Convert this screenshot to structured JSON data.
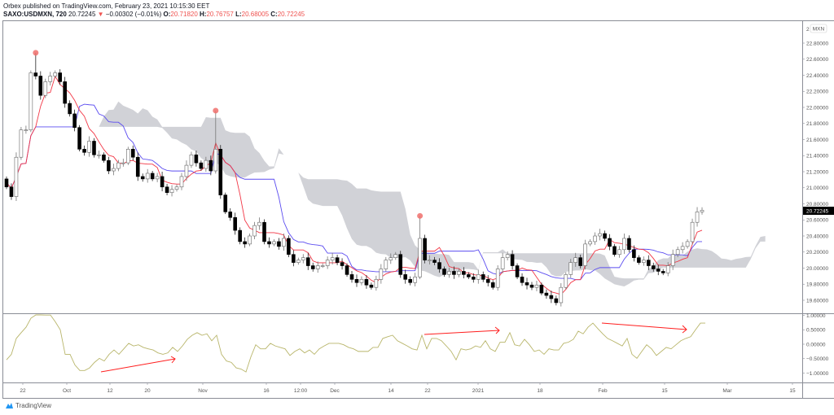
{
  "header": {
    "published": "Orbex published on TradingView.com, February 23, 2021 10:15:30 EET",
    "symbol": "SAXO:USDMXN, 720",
    "last": "20.72245",
    "change": "−0.00302 (−0.01%)",
    "o_label": "O:",
    "o": "20.71820",
    "h_label": "H:",
    "h": "20.76757",
    "l_label": "L:",
    "l": "20.68005",
    "c_label": "C:",
    "c": "20.72245",
    "direction_icon": "triangle-down-icon"
  },
  "price_axis": {
    "currency_badge": "MXN",
    "top_partial": "2",
    "labels": [
      "22.80000",
      "22.60000",
      "22.40000",
      "22.20000",
      "22.00000",
      "21.80000",
      "21.60000",
      "21.40000",
      "21.20000",
      "21.00000",
      "20.80000",
      "20.60000",
      "20.40000",
      "20.20000",
      "20.00000",
      "19.80000",
      "19.60000"
    ],
    "last_price_label": "20.72245"
  },
  "oscillator_axis": {
    "labels": [
      "1.00000",
      "0.50000",
      "0.00000",
      "−0.50000",
      "−1.00000"
    ]
  },
  "time_axis": {
    "labels": [
      "22",
      "Oct",
      "12",
      "20",
      "Nov",
      "16",
      "12:00",
      "Dec",
      "14",
      "22",
      "2021",
      "18",
      "Feb",
      "15",
      "Mar",
      "15"
    ]
  },
  "footer": {
    "brand": "TradingView",
    "logo_icon": "tradingview-logo-icon"
  },
  "colors": {
    "tenkan": "#f23645",
    "kijun": "#5b4cf0",
    "cloud": "#c9cad0",
    "oscillator": "#b8b56a",
    "markers": "#f0706c",
    "bull": "#ffffff",
    "bear": "#000000",
    "arrows": "#ff1e1e"
  },
  "chart_data": [
    {
      "type": "candlestick",
      "indicators": [
        "Ichimoku Cloud"
      ],
      "ylim": [
        19.5,
        23.0
      ],
      "grid": false,
      "closes": [
        21.01,
        20.89,
        21.38,
        21.72,
        21.72,
        22.43,
        22.39,
        22.15,
        22.32,
        22.39,
        22.43,
        22.32,
        22.05,
        21.92,
        21.75,
        21.48,
        21.44,
        21.58,
        21.41,
        21.41,
        21.34,
        21.21,
        21.24,
        21.31,
        21.31,
        21.48,
        21.38,
        21.14,
        21.11,
        21.18,
        21.11,
        21.14,
        21.01,
        20.94,
        20.98,
        21.01,
        21.14,
        21.28,
        21.41,
        21.31,
        21.24,
        21.34,
        21.21,
        21.48,
        20.91,
        20.7,
        20.63,
        20.47,
        20.33,
        20.3,
        20.4,
        20.53,
        20.57,
        20.33,
        20.3,
        20.33,
        20.27,
        20.37,
        20.17,
        20.07,
        20.1,
        20.13,
        20.03,
        19.99,
        20.03,
        20.03,
        20.1,
        20.13,
        20.07,
        20.03,
        19.92,
        19.86,
        19.82,
        19.86,
        19.79,
        19.76,
        19.86,
        19.99,
        20.1,
        20.13,
        20.17,
        19.92,
        19.86,
        19.82,
        19.89,
        20.37,
        20.1,
        20.1,
        20.07,
        19.99,
        19.92,
        19.96,
        19.92,
        19.96,
        19.92,
        19.89,
        19.86,
        19.92,
        19.86,
        19.82,
        19.76,
        19.99,
        20.13,
        20.17,
        20.03,
        19.89,
        19.82,
        19.79,
        19.76,
        19.79,
        19.69,
        19.66,
        19.62,
        19.57,
        19.76,
        19.92,
        20.07,
        20.13,
        20.03,
        20.3,
        20.33,
        20.4,
        20.43,
        20.37,
        20.27,
        20.17,
        20.23,
        20.37,
        20.23,
        20.13,
        20.07,
        20.1,
        20.03,
        19.99,
        19.96,
        19.94,
        20.03,
        20.17,
        20.23,
        20.27,
        20.33,
        20.57,
        20.7,
        20.72
      ],
      "signal_markers": [
        {
          "bar": 6,
          "price": 22.68
        },
        {
          "bar": 43,
          "price": 21.96
        },
        {
          "bar": 85,
          "price": 20.65
        }
      ]
    },
    {
      "type": "line",
      "ylim": [
        -1.2,
        1.2
      ],
      "values": [
        -0.54,
        -0.35,
        0.2,
        0.4,
        0.59,
        0.9,
        1.15,
        1.15,
        1.01,
        1.01,
        0.77,
        0.5,
        -0.35,
        -0.35,
        -0.72,
        -0.91,
        -0.91,
        -0.82,
        -0.63,
        -0.49,
        -0.58,
        -0.35,
        -0.2,
        -0.35,
        -0.16,
        0.03,
        -0.06,
        -0.02,
        -0.11,
        -0.16,
        -0.2,
        -0.3,
        -0.35,
        -0.3,
        -0.11,
        -0.25,
        -0.06,
        0.17,
        0.31,
        0.4,
        0.31,
        0.36,
        0.12,
        0.31,
        -0.35,
        -0.58,
        -0.63,
        -0.82,
        -0.86,
        -0.96,
        -0.44,
        -0.02,
        -0.16,
        -0.16,
        0.03,
        -0.06,
        -0.11,
        -0.16,
        -0.39,
        -0.25,
        -0.16,
        -0.3,
        -0.2,
        -0.35,
        -0.16,
        -0.06,
        0.03,
        0.03,
        0.03,
        -0.02,
        -0.11,
        -0.16,
        -0.25,
        -0.25,
        -0.25,
        -0.11,
        -0.11,
        0.2,
        0.26,
        0.31,
        0.12,
        0.03,
        -0.06,
        -0.16,
        -0.2,
        0.31,
        -0.16,
        0.2,
        0.2,
        0.12,
        -0.06,
        -0.25,
        -0.54,
        -0.16,
        -0.2,
        -0.16,
        -0.06,
        -0.11,
        0.12,
        -0.16,
        -0.25,
        0.07,
        0.07,
        0.4,
        -0.02,
        -0.06,
        0.17,
        -0.02,
        -0.25,
        -0.2,
        -0.35,
        -0.16,
        -0.2,
        -0.2,
        0.03,
        0.07,
        0.17,
        0.45,
        0.36,
        0.59,
        0.73,
        0.54,
        0.36,
        0.2,
        0.12,
        0.03,
        -0.06,
        0.2,
        -0.35,
        -0.49,
        -0.25,
        -0.02,
        -0.16,
        -0.39,
        -0.25,
        -0.11,
        -0.16,
        -0.02,
        0.12,
        0.2,
        0.26,
        0.5,
        0.73,
        0.73
      ]
    }
  ]
}
